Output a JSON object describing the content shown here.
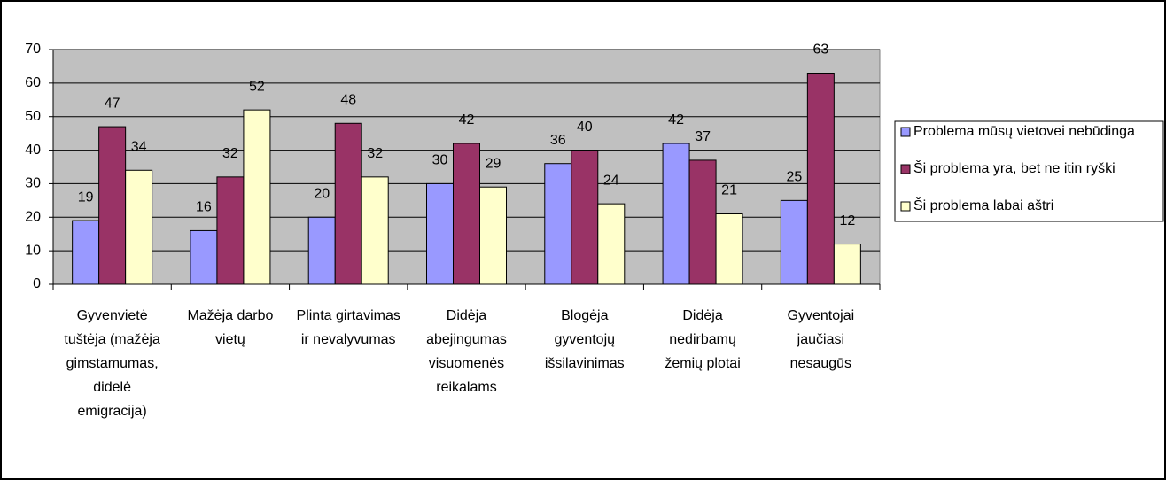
{
  "chart_data": {
    "type": "bar",
    "categories": [
      "Gyvenvietė tuštėja (mažėja gimstamumas, didelė emigracija)",
      "Mažėja darbo vietų",
      "Plinta girtavimas ir nevalyvumas",
      "Didėja abejingumas visuomenės reikalams",
      "Blogėja gyventojų išsilavinimas",
      "Didėja nedirbamų žemių plotai",
      "Gyventojai jaučiasi nesaugūs"
    ],
    "series": [
      {
        "name": "Problema mūsų vietovei nebūdinga",
        "color": "#9999ff",
        "values": [
          19,
          16,
          20,
          30,
          36,
          42,
          25
        ]
      },
      {
        "name": "Ši problema yra, bet ne itin ryški",
        "color": "#993366",
        "values": [
          47,
          32,
          48,
          42,
          40,
          37,
          63
        ]
      },
      {
        "name": "Ši problema labai aštri",
        "color": "#ffffcc",
        "values": [
          34,
          52,
          32,
          29,
          24,
          21,
          12
        ]
      }
    ],
    "ylim": [
      0,
      70
    ],
    "yticks": [
      0,
      10,
      20,
      30,
      40,
      50,
      60,
      70
    ],
    "grid": true,
    "legend": "right"
  }
}
